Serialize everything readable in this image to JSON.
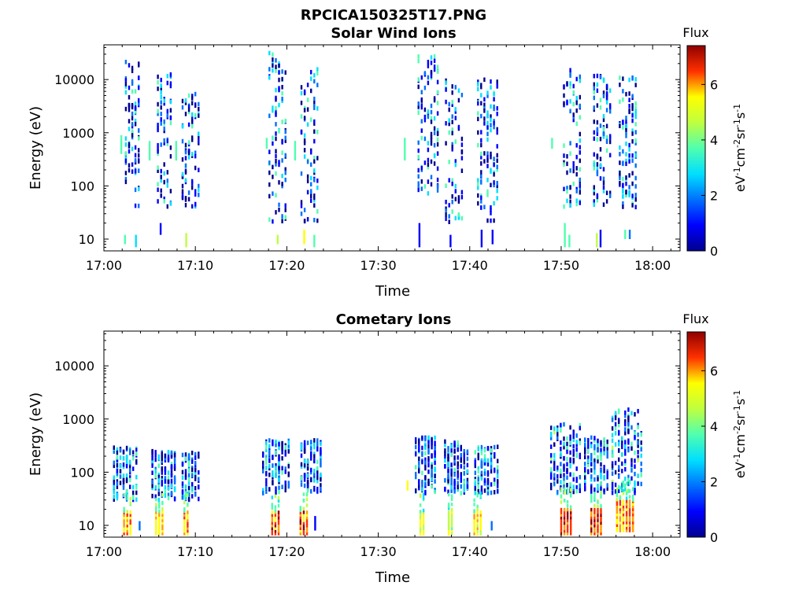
{
  "figure_title": "RPCICA150325T17.PNG",
  "colormap": [
    "#00008f",
    "#0000ff",
    "#0070ff",
    "#00dfff",
    "#50ffaf",
    "#bfff40",
    "#ffff00",
    "#ff9f00",
    "#ff3000",
    "#8f0000"
  ],
  "chart_data": [
    {
      "type": "heatmap",
      "title": "Solar Wind Ions",
      "xlabel": "Time",
      "ylabel": "Energy (eV)",
      "x_ticks": [
        "17:00",
        "17:10",
        "17:20",
        "17:30",
        "17:40",
        "17:50",
        "18:00"
      ],
      "x_range_minutes": [
        0,
        63
      ],
      "y_scale": "log",
      "y_ticks": [
        10,
        100,
        1000,
        10000
      ],
      "y_tick_labels": [
        "10",
        "100",
        "1000",
        "10000"
      ],
      "y_range": [
        6,
        45000
      ],
      "colorbar": {
        "title": "Flux",
        "label": "eV-1cm-2sr-1s-1",
        "range": [
          0,
          7.4
        ],
        "ticks": [
          "0",
          "2",
          "4",
          "6"
        ]
      },
      "clusters": [
        {
          "t": [
            2.3,
            3.8
          ],
          "e": [
            40,
            22000
          ],
          "flux": [
            0.3,
            3.6
          ]
        },
        {
          "t": [
            5.8,
            7.3
          ],
          "e": [
            40,
            13000
          ],
          "flux": [
            0.3,
            3.6
          ]
        },
        {
          "t": [
            8.5,
            10.3
          ],
          "e": [
            40,
            6000
          ],
          "flux": [
            0.3,
            3.6
          ]
        },
        {
          "t": [
            18.0,
            19.6
          ],
          "e": [
            20,
            32000
          ],
          "flux": [
            0.3,
            3.6
          ]
        },
        {
          "t": [
            21.5,
            23.3
          ],
          "e": [
            20,
            16000
          ],
          "flux": [
            0.3,
            3.6
          ]
        },
        {
          "t": [
            34.3,
            36.3
          ],
          "e": [
            60,
            33000
          ],
          "flux": [
            0.3,
            3.6
          ]
        },
        {
          "t": [
            37.3,
            39.2
          ],
          "e": [
            20,
            12000
          ],
          "flux": [
            0.3,
            3.6
          ]
        },
        {
          "t": [
            40.8,
            42.8
          ],
          "e": [
            20,
            10000
          ],
          "flux": [
            0.3,
            3.6
          ]
        },
        {
          "t": [
            50.2,
            52.0
          ],
          "e": [
            40,
            16000
          ],
          "flux": [
            0.3,
            3.6
          ]
        },
        {
          "t": [
            53.5,
            55.2
          ],
          "e": [
            40,
            16000
          ],
          "flux": [
            0.3,
            3.6
          ]
        },
        {
          "t": [
            56.3,
            58.2
          ],
          "e": [
            40,
            11000
          ],
          "flux": [
            0.3,
            3.6
          ]
        }
      ],
      "low_streaks": [
        {
          "t": 2.2,
          "e": [
            8,
            12
          ],
          "flux": 3.5
        },
        {
          "t": 3.4,
          "e": [
            7,
            12
          ],
          "flux": 2.8
        },
        {
          "t": 6.1,
          "e": [
            12,
            20
          ],
          "flux": 1.3
        },
        {
          "t": 8.9,
          "e": [
            7,
            13
          ],
          "flux": 3.7
        },
        {
          "t": 18.9,
          "e": [
            8,
            12
          ],
          "flux": 3.9
        },
        {
          "t": 21.8,
          "e": [
            8,
            15
          ],
          "flux": 4.5
        },
        {
          "t": 22.9,
          "e": [
            7,
            12
          ],
          "flux": 3.6
        },
        {
          "t": 34.4,
          "e": [
            7,
            20
          ],
          "flux": 1.3
        },
        {
          "t": 37.8,
          "e": [
            7,
            12
          ],
          "flux": 1.2
        },
        {
          "t": 41.2,
          "e": [
            7,
            15
          ],
          "flux": 1.4
        },
        {
          "t": 42.4,
          "e": [
            8,
            15
          ],
          "flux": 1.0
        },
        {
          "t": 50.3,
          "e": [
            7,
            20
          ],
          "flux": 3.4
        },
        {
          "t": 50.8,
          "e": [
            7,
            12
          ],
          "flux": 3.0
        },
        {
          "t": 53.8,
          "e": [
            7,
            13
          ],
          "flux": 4.4
        },
        {
          "t": 54.2,
          "e": [
            7,
            15
          ],
          "flux": 0.8
        },
        {
          "t": 56.9,
          "e": [
            10,
            15
          ],
          "flux": 3.0
        },
        {
          "t": 57.4,
          "e": [
            10,
            15
          ],
          "flux": 1.5
        }
      ],
      "mid_streaks": [
        {
          "t": 1.8,
          "e": [
            400,
            900
          ],
          "flux": 3.2
        },
        {
          "t": 4.9,
          "e": [
            300,
            700
          ],
          "flux": 3.1
        },
        {
          "t": 7.8,
          "e": [
            300,
            700
          ],
          "flux": 3.3
        },
        {
          "t": 17.7,
          "e": [
            500,
            800
          ],
          "flux": 3.2
        },
        {
          "t": 20.8,
          "e": [
            300,
            700
          ],
          "flux": 3.0
        },
        {
          "t": 32.8,
          "e": [
            300,
            800
          ],
          "flux": 3.3
        },
        {
          "t": 48.9,
          "e": [
            500,
            800
          ],
          "flux": 3.4
        }
      ]
    },
    {
      "type": "heatmap",
      "title": "Cometary Ions",
      "xlabel": "Time",
      "ylabel": "Energy (eV)",
      "x_ticks": [
        "17:00",
        "17:10",
        "17:20",
        "17:30",
        "17:40",
        "17:50",
        "18:00"
      ],
      "x_range_minutes": [
        0,
        63
      ],
      "y_scale": "log",
      "y_ticks": [
        10,
        100,
        1000,
        10000
      ],
      "y_tick_labels": [
        "10",
        "100",
        "1000",
        "10000"
      ],
      "y_range": [
        6,
        45000
      ],
      "colorbar": {
        "title": "Flux",
        "label": "eV-1cm-2sr-1s-1",
        "range": [
          0,
          7.4
        ],
        "ticks": [
          "0",
          "2",
          "4",
          "6"
        ]
      },
      "clusters": [
        {
          "t": [
            1.0,
            3.5
          ],
          "e": [
            30,
            300
          ],
          "flux": [
            0.5,
            3.4
          ]
        },
        {
          "t": [
            5.2,
            7.7
          ],
          "e": [
            30,
            250
          ],
          "flux": [
            0.5,
            3.4
          ]
        },
        {
          "t": [
            8.5,
            10.4
          ],
          "e": [
            30,
            230
          ],
          "flux": [
            0.5,
            3.4
          ]
        },
        {
          "t": [
            17.3,
            20.0
          ],
          "e": [
            40,
            400
          ],
          "flux": [
            0.5,
            3.4
          ]
        },
        {
          "t": [
            21.5,
            23.5
          ],
          "e": [
            40,
            400
          ],
          "flux": [
            0.5,
            3.4
          ]
        },
        {
          "t": [
            34.0,
            36.2
          ],
          "e": [
            40,
            450
          ],
          "flux": [
            0.5,
            3.4
          ]
        },
        {
          "t": [
            37.2,
            39.5
          ],
          "e": [
            40,
            380
          ],
          "flux": [
            0.5,
            3.4
          ]
        },
        {
          "t": [
            40.5,
            42.8
          ],
          "e": [
            40,
            300
          ],
          "flux": [
            0.5,
            3.4
          ]
        },
        {
          "t": [
            48.8,
            51.8
          ],
          "e": [
            40,
            800
          ],
          "flux": [
            0.5,
            3.8
          ]
        },
        {
          "t": [
            52.5,
            55.0
          ],
          "e": [
            40,
            450
          ],
          "flux": [
            0.5,
            3.8
          ]
        },
        {
          "t": [
            55.5,
            58.5
          ],
          "e": [
            40,
            1500
          ],
          "flux": [
            0.5,
            3.8
          ]
        }
      ],
      "hot_bands": [
        {
          "t": [
            2.1,
            3.0
          ],
          "e": [
            7,
            18
          ],
          "flux": [
            4.5,
            6.6
          ]
        },
        {
          "t": [
            5.6,
            6.3
          ],
          "e": [
            7,
            18
          ],
          "flux": [
            4.5,
            5.6
          ]
        },
        {
          "t": [
            8.7,
            9.3
          ],
          "e": [
            7,
            18
          ],
          "flux": [
            4.5,
            6.6
          ]
        },
        {
          "t": [
            18.3,
            19.1
          ],
          "e": [
            7,
            18
          ],
          "flux": [
            4.8,
            7.0
          ]
        },
        {
          "t": [
            21.4,
            22.2
          ],
          "e": [
            7,
            18
          ],
          "flux": [
            4.8,
            7.0
          ]
        },
        {
          "t": [
            34.5,
            35.1
          ],
          "e": [
            7,
            18
          ],
          "flux": [
            3.8,
            5.2
          ]
        },
        {
          "t": [
            37.6,
            38.2
          ],
          "e": [
            7,
            18
          ],
          "flux": [
            3.6,
            5.0
          ]
        },
        {
          "t": [
            40.4,
            41.2
          ],
          "e": [
            7,
            18
          ],
          "flux": [
            4.0,
            5.4
          ]
        },
        {
          "t": [
            49.9,
            51.1
          ],
          "e": [
            7,
            22
          ],
          "flux": [
            5.5,
            7.2
          ]
        },
        {
          "t": [
            53.2,
            54.6
          ],
          "e": [
            7,
            22
          ],
          "flux": [
            5.5,
            7.2
          ]
        },
        {
          "t": [
            56.0,
            57.8
          ],
          "e": [
            8,
            30
          ],
          "flux": [
            4.8,
            6.6
          ]
        }
      ],
      "low_streaks": [
        {
          "t": 3.8,
          "e": [
            8,
            12
          ],
          "flux": 1.5
        },
        {
          "t": 23.0,
          "e": [
            8,
            15
          ],
          "flux": 0.8
        },
        {
          "t": 42.3,
          "e": [
            8,
            12
          ],
          "flux": 1.8
        },
        {
          "t": 33.1,
          "e": [
            45,
            70
          ],
          "flux": 4.8
        }
      ]
    }
  ]
}
